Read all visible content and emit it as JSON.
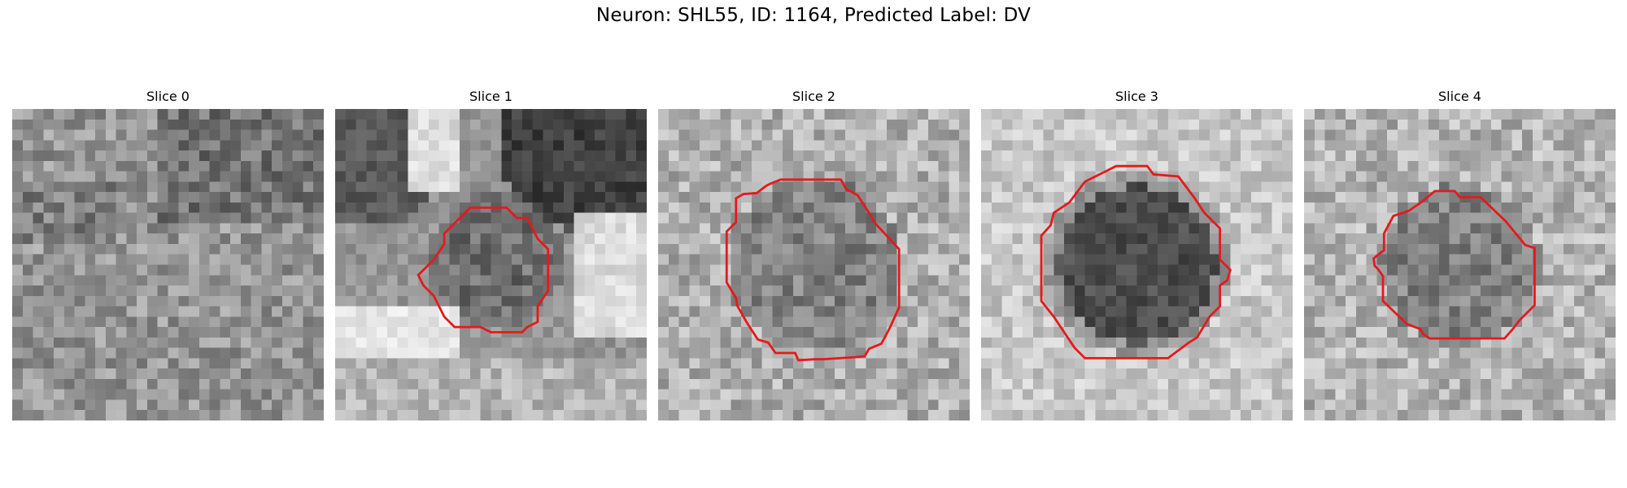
{
  "figure": {
    "title": "Neuron: SHL55, ID: 1164, Predicted Label: DV",
    "contour_color": "#e41a1c",
    "colormap": "grayscale",
    "grid_size": 30
  },
  "panels": [
    {
      "title": "Slice 0",
      "seed": 11,
      "style": "noise",
      "base": 150,
      "contrast": 38,
      "contour": false
    },
    {
      "title": "Slice 1",
      "seed": 23,
      "style": "blobs",
      "base": 150,
      "contrast": 22,
      "contour": true
    },
    {
      "title": "Slice 2",
      "seed": 37,
      "style": "cell",
      "base": 175,
      "contrast": 40,
      "contour": true
    },
    {
      "title": "Slice 3",
      "seed": 41,
      "style": "cell-dark",
      "base": 200,
      "contrast": 30,
      "contour": true
    },
    {
      "title": "Slice 4",
      "seed": 53,
      "style": "cell",
      "base": 180,
      "contrast": 40,
      "contour": true
    }
  ]
}
